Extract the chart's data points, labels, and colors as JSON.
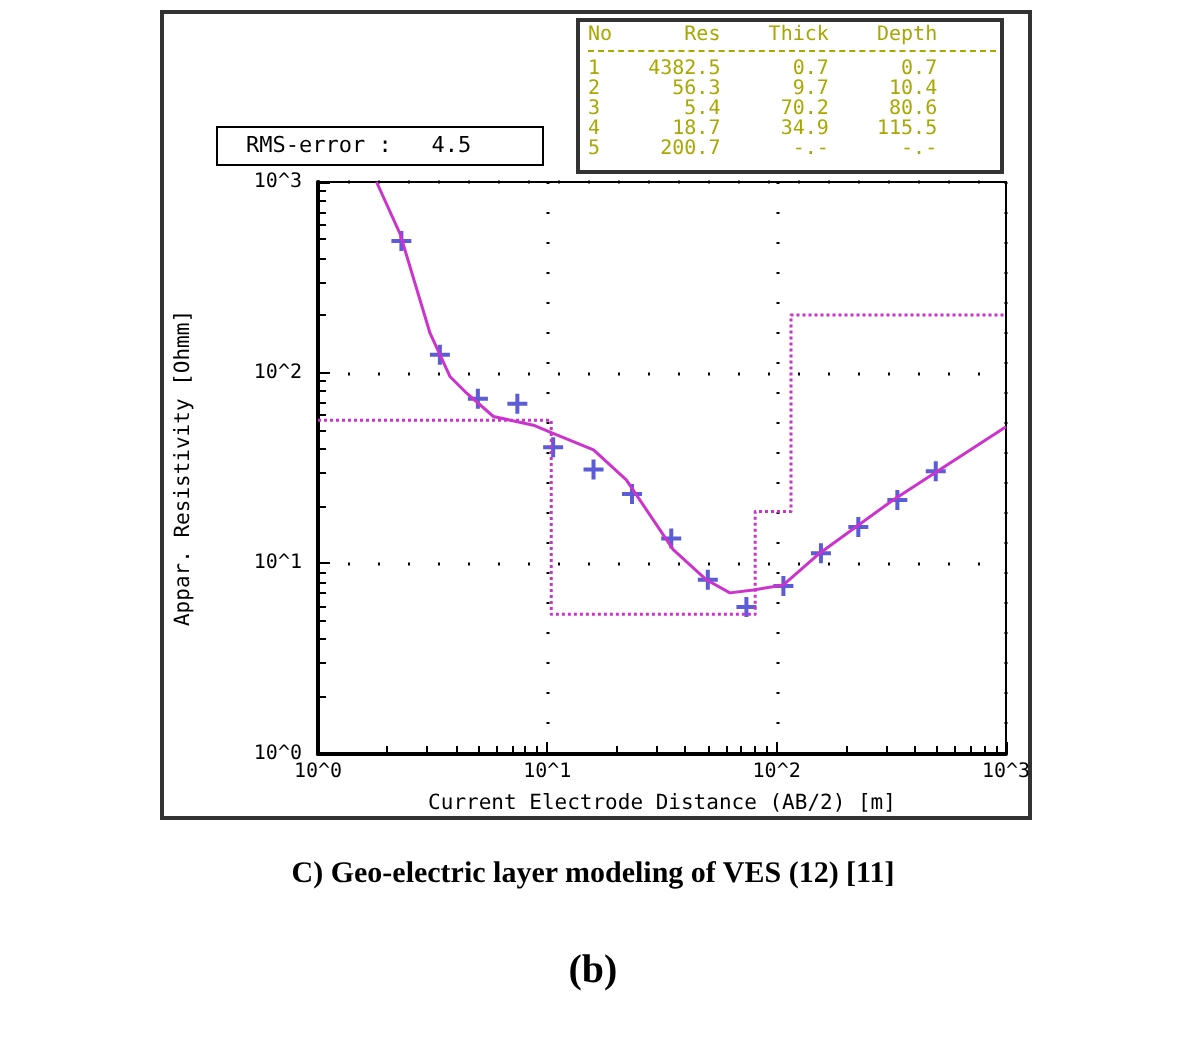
{
  "chart_data": {
    "type": "scatter",
    "xlabel": "Current Electrode Distance (AB/2) [m]",
    "ylabel": "Appar. Resistivity [Ohmm]",
    "log": "xy",
    "grid": true,
    "xlim": [
      1,
      1000
    ],
    "ylim": [
      1,
      1000
    ],
    "xticks": [
      {
        "value": 1,
        "label": "10^0"
      },
      {
        "value": 10,
        "label": "10^1"
      },
      {
        "value": 100,
        "label": "10^2"
      },
      {
        "value": 1000,
        "label": "10^3"
      }
    ],
    "yticks": [
      {
        "value": 1,
        "label": "10^0"
      },
      {
        "value": 10,
        "label": "10^1"
      },
      {
        "value": 100,
        "label": "10^2"
      },
      {
        "value": 1000,
        "label": "10^3"
      }
    ],
    "series": [
      {
        "marker": "cross",
        "color": "#3333cc",
        "x": [
          2.31,
          3.4,
          4.98,
          7.4,
          10.6,
          15.9,
          23.4,
          34.7,
          50.1,
          73.8,
          107,
          156,
          227,
          336,
          494
        ],
        "values": [
          490,
          124,
          73,
          68.6,
          40.6,
          31.1,
          23.1,
          13.5,
          8.2,
          5.9,
          7.6,
          11.3,
          15.5,
          21.5,
          30.4
        ]
      },
      {
        "type": "line",
        "marker": "none",
        "line_style": "solid",
        "color": "#cc33cc",
        "x": [
          1.8,
          2.28,
          3.08,
          3.76,
          4.45,
          5.82,
          8.7,
          10.6,
          15.9,
          22.1,
          35.4,
          49.4,
          62.5,
          79,
          107,
          154,
          322,
          1000
        ],
        "values": [
          1000,
          535,
          161,
          95.5,
          78,
          58.9,
          53,
          48,
          39.4,
          27.4,
          11.8,
          8.2,
          7.0,
          7.25,
          7.7,
          11.3,
          21.5,
          52
        ]
      },
      {
        "type": "step",
        "marker": "none",
        "line_style": "dotted",
        "color": "#cc33cc",
        "x": [
          1,
          10.4,
          80.6,
          115.5,
          1000
        ],
        "values": [
          56.3,
          5.4,
          18.7,
          200.7,
          200.7
        ]
      }
    ],
    "annotations": [
      "RMS-error :   4.5",
      "No      Res    Thick    Depth",
      "1    4382.5      0.7      0.7",
      "2      56.3      9.7     10.4",
      "3       5.4     70.2     80.6",
      "4      18.7     34.9    115.5",
      "5     200.7      -.-      -.-",
      "C) Geo-electric layer modeling of VES (12) [11]",
      "(b)"
    ]
  }
}
